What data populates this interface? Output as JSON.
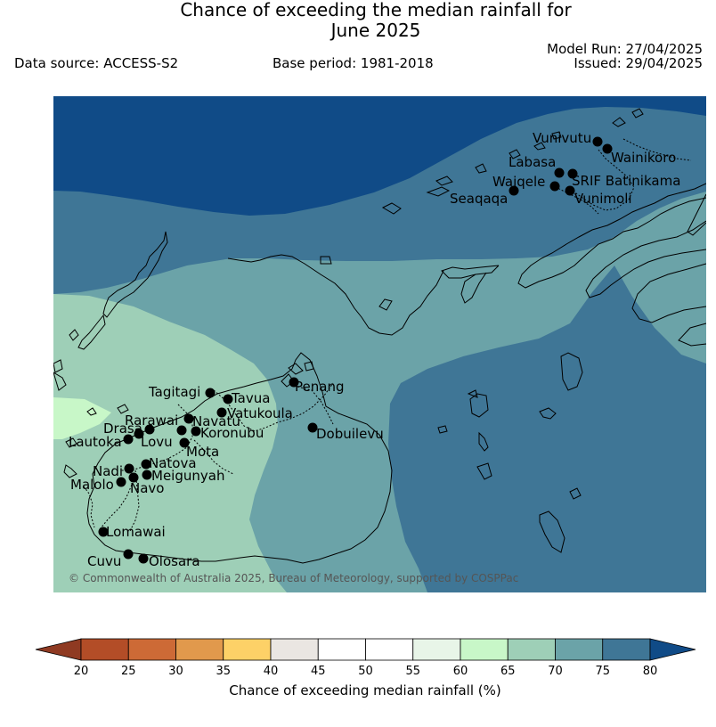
{
  "title_line1": "Chance of exceeding the median rainfall for",
  "title_line2": "June 2025",
  "data_source": "Data source: ACCESS-S2",
  "base_period": "Base period: 1981-2018",
  "model_run": "Model Run: 27/04/2025",
  "issued": "Issued: 29/04/2025",
  "credit": "© Commonwealth of Australia 2025, Bureau of Meteorology, supported by COSPPac",
  "colorbar": {
    "label": "Chance of exceeding median rainfall (%)",
    "ticks": [
      "20",
      "25",
      "30",
      "35",
      "40",
      "45",
      "50",
      "55",
      "60",
      "65",
      "70",
      "75",
      "80"
    ],
    "colors": {
      "lt20": "#8f3a22",
      "20-25": "#b34d27",
      "25-30": "#cd6a36",
      "30-35": "#e1994c",
      "35-40": "#fdd167",
      "40-45": "#eae6e2",
      "45-50": "#ffffff",
      "50-55": "#ffffff",
      "55-60": "#e8f5e8",
      "60-65": "#c8f7c8",
      "65-70": "#9ecfb7",
      "70-75": "#6ba3a8",
      "75-80": "#3f7696",
      "gt80": "#104b87"
    }
  },
  "places": [
    {
      "name": "Vunivutu"
    },
    {
      "name": "Wainikoro"
    },
    {
      "name": "Labasa"
    },
    {
      "name": "SRIF Batinikama"
    },
    {
      "name": "Waiqele"
    },
    {
      "name": "Seaqaqa"
    },
    {
      "name": "Vunimoli"
    },
    {
      "name": "Penang"
    },
    {
      "name": "Tagitagi"
    },
    {
      "name": "Tavua"
    },
    {
      "name": "Vatukoula"
    },
    {
      "name": "Rarawai"
    },
    {
      "name": "Navatu"
    },
    {
      "name": "Drasa"
    },
    {
      "name": "Koronubu"
    },
    {
      "name": "Lautoka"
    },
    {
      "name": "Lovu"
    },
    {
      "name": "Mota"
    },
    {
      "name": "Dobuilevu"
    },
    {
      "name": "Nadi"
    },
    {
      "name": "Natova"
    },
    {
      "name": "Meigunyah"
    },
    {
      "name": "Malolo"
    },
    {
      "name": "Navo"
    },
    {
      "name": "Lomawai"
    },
    {
      "name": "Cuvu"
    },
    {
      "name": "Olosara"
    }
  ]
}
